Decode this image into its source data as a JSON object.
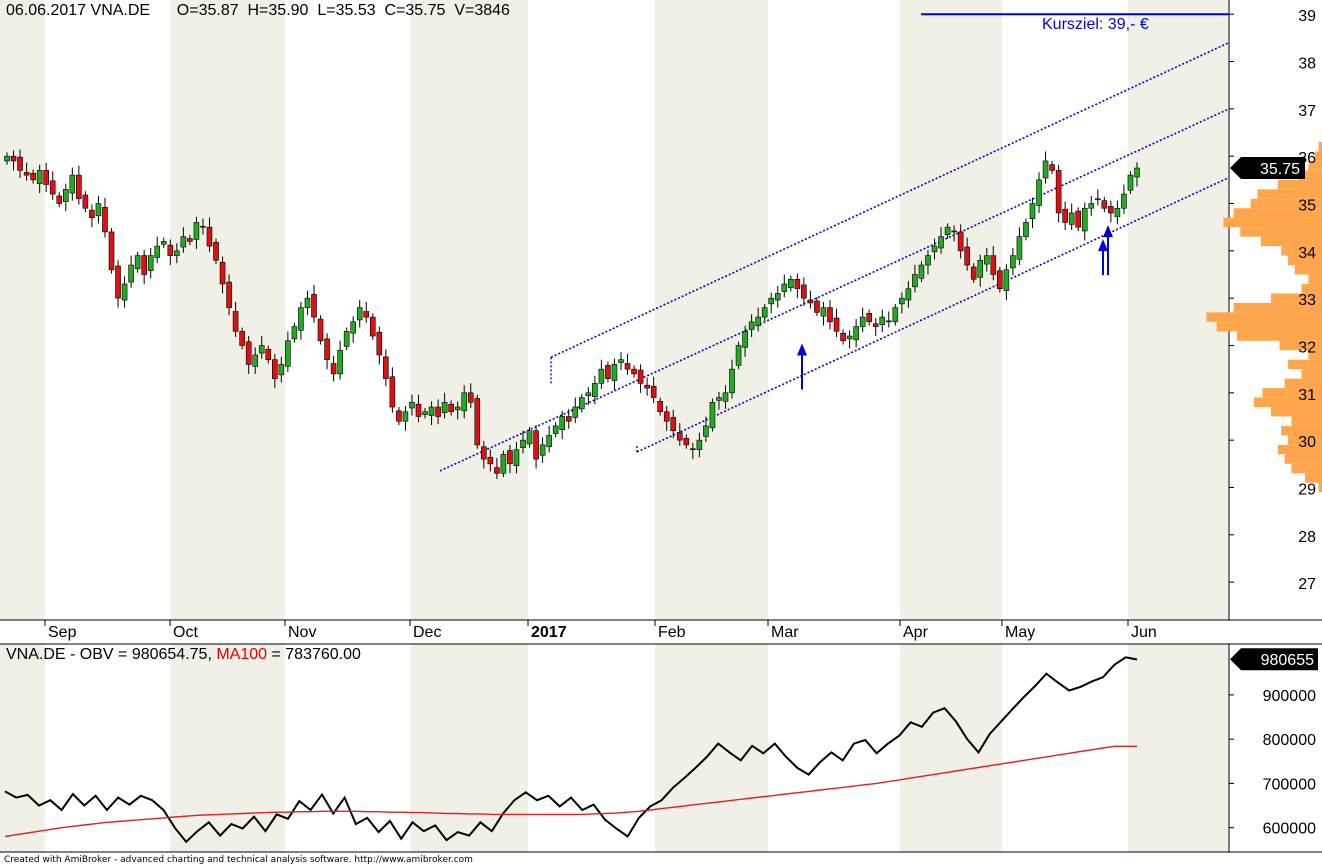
{
  "header": {
    "date": "06.06.2017",
    "symbol": "VNA.DE",
    "open_text": "O=35.87",
    "high_text": "H=35.90",
    "low_text": "L=35.53",
    "close_text": "C=35.75",
    "volume_text": "V=3846"
  },
  "annotation": {
    "kursziel_text": "Kursziel: 39,- €",
    "kursziel_level": 39
  },
  "obv_header": {
    "obv_text": "VNA.DE - OBV = 980654.75, ",
    "ma_text": "MA100",
    "ma_value_text": " = 783760.00"
  },
  "footer": "Created with AmiBroker - advanced charting and technical analysis software. http://www.amibroker.com",
  "colors": {
    "up_candle": "#22aa22",
    "down_candle": "#dd1111",
    "channel": "#0000dd",
    "volume_profile": "#ffa64d",
    "band_shade": "#f0f0e6",
    "obv_line": "#000000",
    "ma_line": "#dd2222"
  },
  "chart_data": [
    {
      "type": "candlestick",
      "title": "",
      "ylim": [
        26.2,
        39.3
      ],
      "y_ticks": [
        27,
        28,
        29,
        30,
        31,
        32,
        33,
        34,
        35,
        36,
        37,
        38,
        39
      ],
      "x_labels": [
        "Sep",
        "Oct",
        "Nov",
        "Dec",
        "2017",
        "Feb",
        "Mar",
        "Apr",
        "May",
        "Jun"
      ],
      "last_price": 35.75,
      "last_price_label": "35.75",
      "grid": false,
      "monthly_shading": true,
      "channel_lines": [
        {
          "name": "upper",
          "from": [
            "Jan 2017",
            31.75
          ],
          "to": [
            "Jun 2017",
            38.4
          ]
        },
        {
          "name": "middle",
          "from": [
            "Dec 2016",
            29.35
          ],
          "to": [
            "Jun 2017",
            37.0
          ]
        },
        {
          "name": "lower",
          "from": [
            "Jan 2017",
            29.75
          ],
          "to": [
            "Jun 2017",
            35.55
          ]
        }
      ],
      "markers": [
        {
          "type": "up-arrow",
          "date": "Mar 2017",
          "price": 32.0
        },
        {
          "type": "double-up-arrow",
          "date": "May 2017",
          "price": 34.5
        }
      ],
      "volume_profile": {
        "prices": [
          29.0,
          29.2,
          29.4,
          29.6,
          29.8,
          30.0,
          30.2,
          30.4,
          30.6,
          30.8,
          31.0,
          31.2,
          31.4,
          31.6,
          31.8,
          32.0,
          32.2,
          32.4,
          32.6,
          32.8,
          33.0,
          33.2,
          33.4,
          33.6,
          33.8,
          34.0,
          34.2,
          34.4,
          34.6,
          34.8,
          35.0,
          35.2,
          35.4,
          35.6,
          35.8,
          36.0,
          36.2
        ],
        "volumes": [
          0.02,
          0.1,
          0.18,
          0.22,
          0.26,
          0.2,
          0.24,
          0.18,
          0.3,
          0.4,
          0.35,
          0.22,
          0.12,
          0.2,
          0.08,
          0.25,
          0.5,
          0.62,
          0.68,
          0.52,
          0.3,
          0.12,
          0.08,
          0.16,
          0.2,
          0.24,
          0.36,
          0.48,
          0.58,
          0.52,
          0.42,
          0.38,
          0.26,
          0.14,
          0.08,
          0.04,
          0.02
        ]
      }
    },
    {
      "type": "line",
      "title": "",
      "ylim": [
        545000,
        1015000
      ],
      "y_ticks": [
        600000,
        700000,
        800000,
        900000
      ],
      "last_value": 980654.75,
      "last_value_label": "980655",
      "series": [
        {
          "name": "OBV",
          "values": [
            682000,
            668000,
            674000,
            650000,
            662000,
            640000,
            676000,
            650000,
            672000,
            640000,
            668000,
            652000,
            672000,
            662000,
            640000,
            600000,
            568000,
            592000,
            612000,
            582000,
            608000,
            598000,
            625000,
            592000,
            630000,
            620000,
            660000,
            640000,
            675000,
            632000,
            668000,
            608000,
            622000,
            590000,
            615000,
            575000,
            612000,
            592000,
            605000,
            572000,
            590000,
            582000,
            612000,
            592000,
            632000,
            662000,
            680000,
            662000,
            672000,
            648000,
            668000,
            640000,
            652000,
            618000,
            598000,
            580000,
            622000,
            648000,
            662000,
            690000,
            712000,
            735000,
            760000,
            790000,
            770000,
            752000,
            785000,
            768000,
            790000,
            760000,
            735000,
            720000,
            748000,
            770000,
            752000,
            790000,
            798000,
            768000,
            790000,
            808000,
            838000,
            828000,
            860000,
            870000,
            840000,
            800000,
            770000,
            812000,
            840000,
            868000,
            895000,
            920000,
            948000,
            928000,
            910000,
            918000,
            930000,
            940000,
            968000,
            985000,
            980000
          ]
        },
        {
          "name": "MA100",
          "values": [
            580000,
            584000,
            588000,
            592000,
            596000,
            600000,
            603000,
            606000,
            609000,
            612000,
            614000,
            616000,
            618000,
            620000,
            622000,
            624000,
            626000,
            628000,
            629000,
            630000,
            631000,
            632000,
            633000,
            634000,
            635000,
            635000,
            636000,
            636000,
            637000,
            637000,
            637000,
            637000,
            636000,
            636000,
            635000,
            635000,
            634000,
            634000,
            633000,
            632000,
            632000,
            631000,
            631000,
            630000,
            630000,
            630000,
            630000,
            630000,
            630000,
            630000,
            630000,
            630000,
            631000,
            632000,
            633000,
            635000,
            637000,
            640000,
            643000,
            646000,
            649000,
            652000,
            655000,
            658000,
            661000,
            664000,
            667000,
            670000,
            673000,
            676000,
            679000,
            682000,
            685000,
            688000,
            691000,
            694000,
            697000,
            700000,
            704000,
            708000,
            712000,
            716000,
            720000,
            724000,
            728000,
            732000,
            736000,
            740000,
            744000,
            748000,
            752000,
            756000,
            760000,
            764000,
            768000,
            772000,
            776000,
            780000,
            783760,
            783760,
            783760
          ]
        }
      ]
    }
  ]
}
